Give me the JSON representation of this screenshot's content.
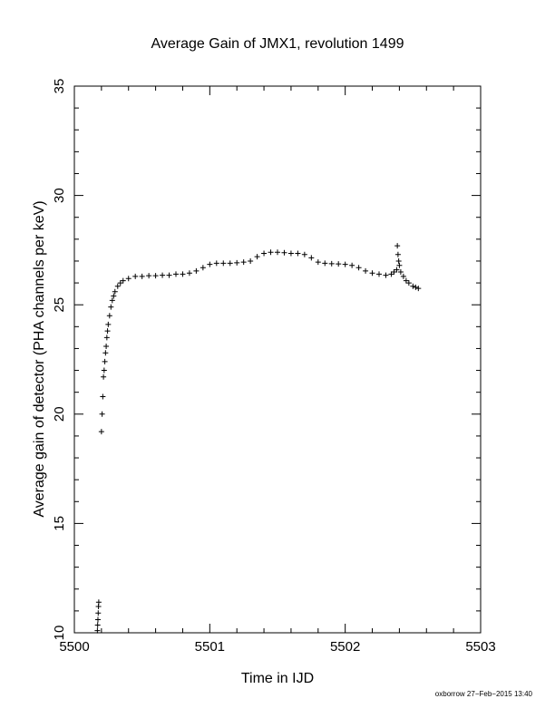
{
  "chart_data": {
    "type": "scatter",
    "title": "Average Gain of JMX1, revolution 1499",
    "xlabel": "Time in IJD",
    "ylabel": "Average gain of detector (PHA channels per keV)",
    "xlim": [
      5500,
      5503
    ],
    "ylim": [
      10,
      35
    ],
    "xticks": [
      5500,
      5501,
      5502,
      5503
    ],
    "yticks": [
      10,
      15,
      20,
      25,
      30,
      35
    ],
    "grid": false,
    "marker": "+",
    "series": [
      {
        "points": [
          [
            5500.17,
            10.1
          ],
          [
            5500.172,
            10.35
          ],
          [
            5500.174,
            10.6
          ],
          [
            5500.176,
            10.9
          ],
          [
            5500.178,
            11.2
          ],
          [
            5500.18,
            11.4
          ],
          [
            5500.2,
            19.2
          ],
          [
            5500.205,
            20.0
          ],
          [
            5500.21,
            20.8
          ],
          [
            5500.215,
            21.7
          ],
          [
            5500.22,
            22.0
          ],
          [
            5500.225,
            22.4
          ],
          [
            5500.23,
            22.8
          ],
          [
            5500.235,
            23.1
          ],
          [
            5500.24,
            23.5
          ],
          [
            5500.245,
            23.8
          ],
          [
            5500.25,
            24.1
          ],
          [
            5500.26,
            24.5
          ],
          [
            5500.27,
            24.9
          ],
          [
            5500.28,
            25.2
          ],
          [
            5500.29,
            25.4
          ],
          [
            5500.3,
            25.6
          ],
          [
            5500.32,
            25.85
          ],
          [
            5500.34,
            26.0
          ],
          [
            5500.36,
            26.1
          ],
          [
            5500.4,
            26.2
          ],
          [
            5500.45,
            26.3
          ],
          [
            5500.5,
            26.3
          ],
          [
            5500.55,
            26.33
          ],
          [
            5500.6,
            26.33
          ],
          [
            5500.65,
            26.35
          ],
          [
            5500.7,
            26.35
          ],
          [
            5500.75,
            26.4
          ],
          [
            5500.8,
            26.4
          ],
          [
            5500.85,
            26.45
          ],
          [
            5500.9,
            26.55
          ],
          [
            5500.95,
            26.7
          ],
          [
            5501.0,
            26.85
          ],
          [
            5501.05,
            26.9
          ],
          [
            5501.1,
            26.9
          ],
          [
            5501.15,
            26.9
          ],
          [
            5501.2,
            26.92
          ],
          [
            5501.25,
            26.95
          ],
          [
            5501.3,
            27.0
          ],
          [
            5501.35,
            27.2
          ],
          [
            5501.4,
            27.35
          ],
          [
            5501.45,
            27.4
          ],
          [
            5501.5,
            27.4
          ],
          [
            5501.55,
            27.38
          ],
          [
            5501.6,
            27.35
          ],
          [
            5501.65,
            27.35
          ],
          [
            5501.7,
            27.3
          ],
          [
            5501.75,
            27.15
          ],
          [
            5501.8,
            26.95
          ],
          [
            5501.85,
            26.9
          ],
          [
            5501.9,
            26.88
          ],
          [
            5501.95,
            26.87
          ],
          [
            5502.0,
            26.85
          ],
          [
            5502.05,
            26.8
          ],
          [
            5502.1,
            26.7
          ],
          [
            5502.15,
            26.55
          ],
          [
            5502.2,
            26.45
          ],
          [
            5502.25,
            26.4
          ],
          [
            5502.3,
            26.35
          ],
          [
            5502.34,
            26.4
          ],
          [
            5502.36,
            26.5
          ],
          [
            5502.38,
            26.6
          ],
          [
            5502.385,
            27.7
          ],
          [
            5502.39,
            27.3
          ],
          [
            5502.395,
            27.0
          ],
          [
            5502.4,
            26.8
          ],
          [
            5502.41,
            26.5
          ],
          [
            5502.43,
            26.3
          ],
          [
            5502.45,
            26.1
          ],
          [
            5502.47,
            26.0
          ],
          [
            5502.5,
            25.85
          ],
          [
            5502.52,
            25.8
          ],
          [
            5502.54,
            25.75
          ]
        ]
      }
    ]
  },
  "footer": {
    "credit": "oxborrow 27−Feb−2015 13:40"
  }
}
